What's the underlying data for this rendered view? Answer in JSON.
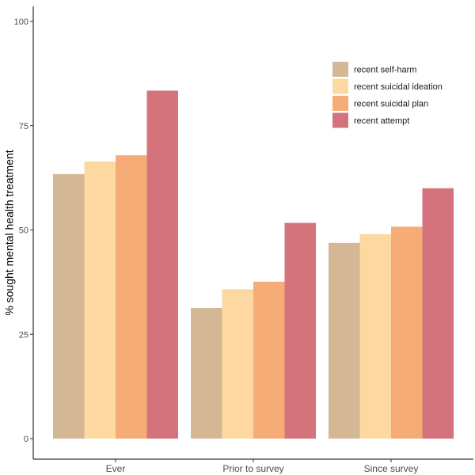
{
  "chart_data": {
    "type": "bar",
    "title": "",
    "xlabel": "",
    "ylabel": "% sought mental health treatment",
    "categories": [
      "Ever",
      "Prior to survey",
      "Since survey"
    ],
    "ylim": [
      0,
      105
    ],
    "yticks": [
      0,
      25,
      50,
      75,
      100
    ],
    "grid": false,
    "legend_position": "top-right",
    "series": [
      {
        "name": "recent self-harm",
        "color": "#D4B896",
        "values": [
          63.4,
          31.3,
          46.9
        ]
      },
      {
        "name": "recent suicidal ideation",
        "color": "#FDD8A0",
        "values": [
          66.4,
          35.8,
          49.0
        ]
      },
      {
        "name": "recent suicidal plan",
        "color": "#F5AC76",
        "values": [
          67.9,
          37.6,
          50.8
        ]
      },
      {
        "name": "recent attempt",
        "color": "#D4737B",
        "values": [
          83.4,
          51.7,
          60.0
        ]
      }
    ]
  }
}
